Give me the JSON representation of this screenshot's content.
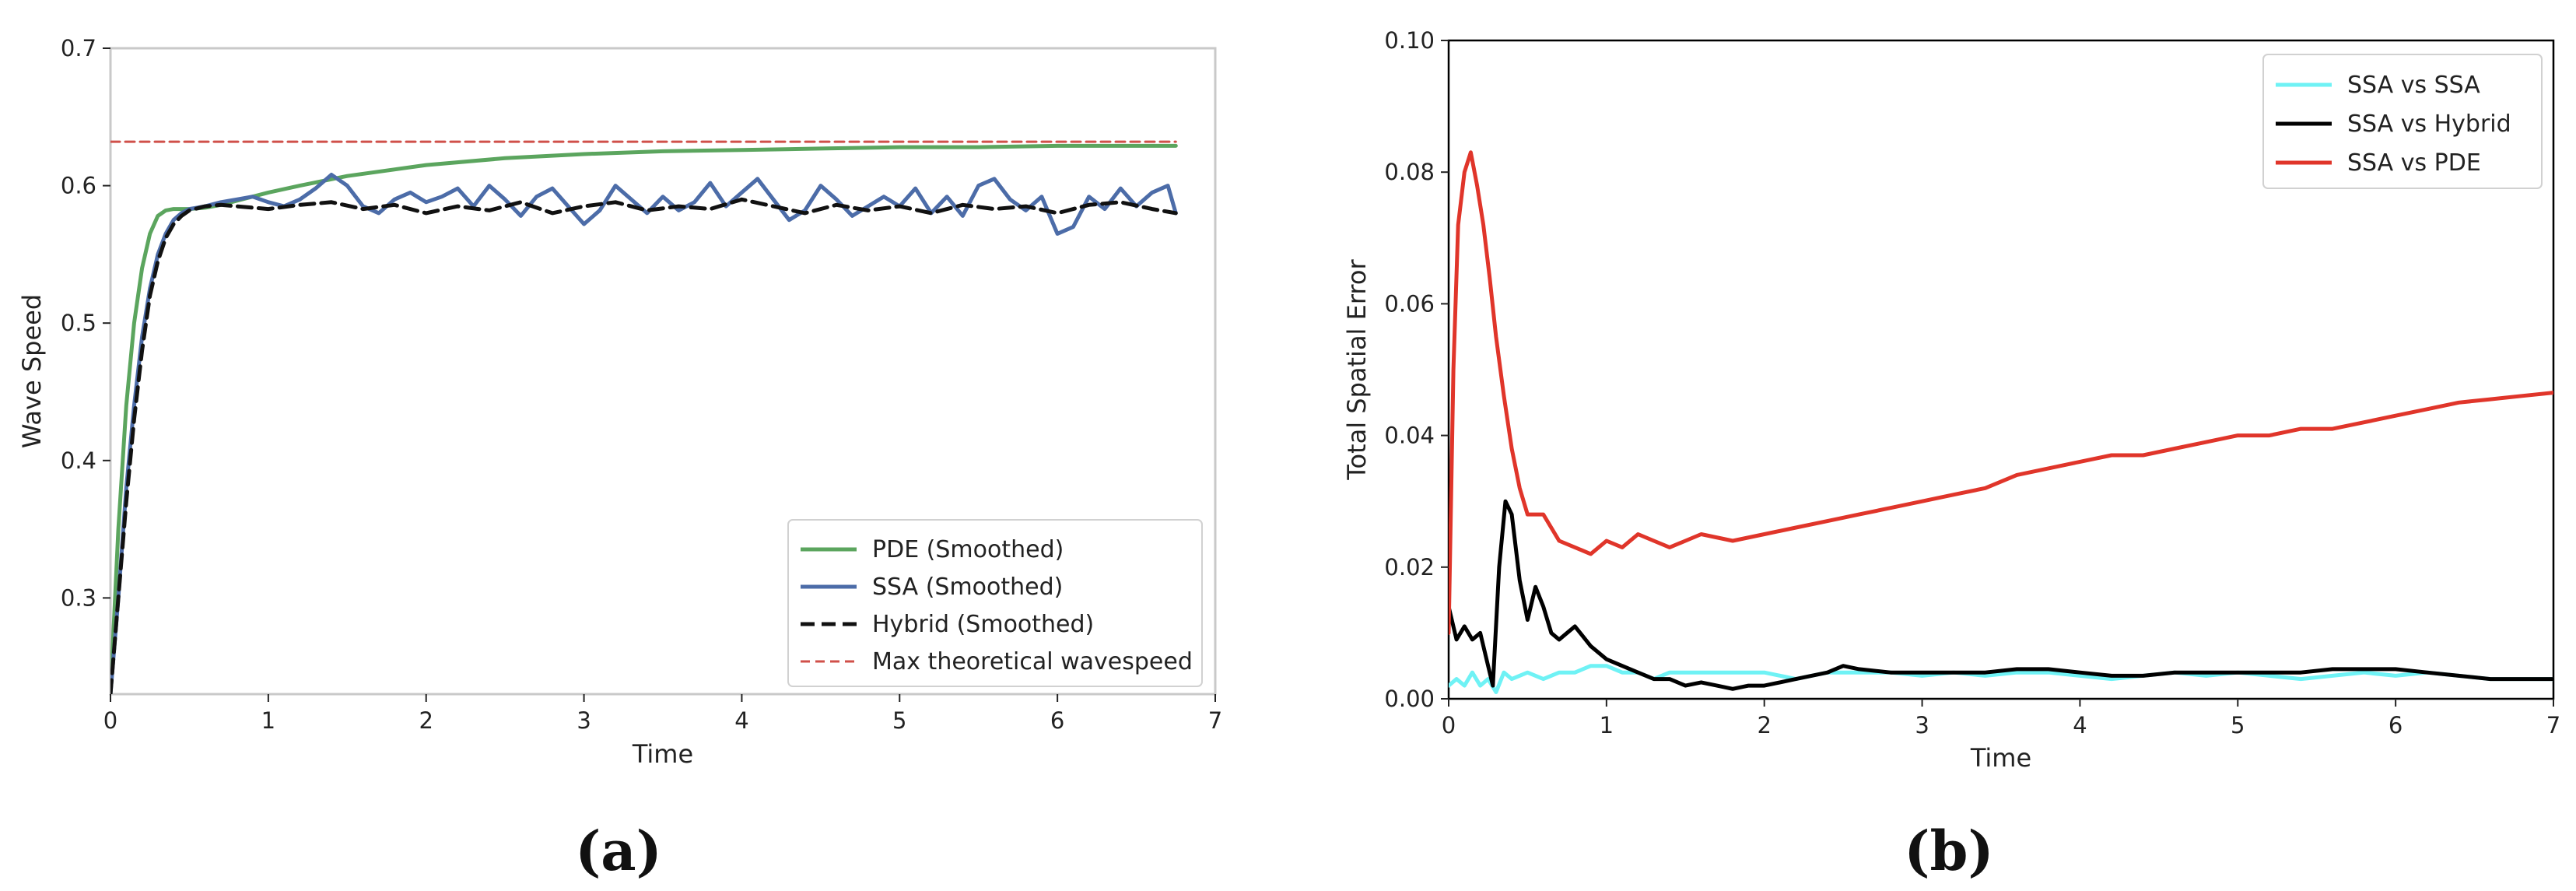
{
  "chart_data": [
    {
      "type": "line",
      "caption": "(a)",
      "xlabel": "Time",
      "ylabel": "Wave Speed",
      "xlim": [
        0,
        7
      ],
      "ylim": [
        0.23,
        0.7
      ],
      "xticks": [
        0,
        1,
        2,
        3,
        4,
        5,
        6,
        7
      ],
      "yticks": [
        0.3,
        0.4,
        0.5,
        0.6,
        0.7
      ],
      "frame": "light-gray",
      "legend_position": "lower-right",
      "series": [
        {
          "name": "PDE (Smoothed)",
          "color": "#5ba55e",
          "style": "solid",
          "x": [
            0,
            0.05,
            0.1,
            0.15,
            0.2,
            0.25,
            0.3,
            0.35,
            0.4,
            0.45,
            0.5,
            0.6,
            0.7,
            0.8,
            1.0,
            1.2,
            1.5,
            2.0,
            2.5,
            3.0,
            3.5,
            4.0,
            4.5,
            5.0,
            5.5,
            6.0,
            6.5,
            6.75
          ],
          "values": [
            0.23,
            0.35,
            0.44,
            0.5,
            0.54,
            0.565,
            0.578,
            0.582,
            0.583,
            0.583,
            0.583,
            0.584,
            0.586,
            0.589,
            0.595,
            0.6,
            0.607,
            0.615,
            0.62,
            0.623,
            0.625,
            0.626,
            0.627,
            0.628,
            0.628,
            0.629,
            0.629,
            0.629
          ]
        },
        {
          "name": "SSA (Smoothed)",
          "color": "#4c6ca8",
          "style": "solid",
          "x": [
            0,
            0.05,
            0.1,
            0.15,
            0.2,
            0.25,
            0.3,
            0.35,
            0.4,
            0.45,
            0.5,
            0.6,
            0.7,
            0.8,
            0.9,
            1.0,
            1.1,
            1.2,
            1.3,
            1.4,
            1.5,
            1.6,
            1.7,
            1.8,
            1.9,
            2.0,
            2.1,
            2.2,
            2.3,
            2.4,
            2.5,
            2.6,
            2.7,
            2.8,
            2.9,
            3.0,
            3.1,
            3.2,
            3.3,
            3.4,
            3.5,
            3.6,
            3.7,
            3.8,
            3.9,
            4.0,
            4.1,
            4.2,
            4.3,
            4.4,
            4.5,
            4.6,
            4.7,
            4.8,
            4.9,
            5.0,
            5.1,
            5.2,
            5.3,
            5.4,
            5.5,
            5.6,
            5.7,
            5.8,
            5.9,
            6.0,
            6.1,
            6.2,
            6.3,
            6.4,
            6.5,
            6.6,
            6.7,
            6.75
          ],
          "values": [
            0.23,
            0.3,
            0.38,
            0.44,
            0.49,
            0.525,
            0.55,
            0.565,
            0.575,
            0.58,
            0.583,
            0.585,
            0.588,
            0.59,
            0.592,
            0.588,
            0.585,
            0.59,
            0.598,
            0.608,
            0.6,
            0.585,
            0.58,
            0.59,
            0.595,
            0.588,
            0.592,
            0.598,
            0.585,
            0.6,
            0.59,
            0.578,
            0.592,
            0.598,
            0.585,
            0.572,
            0.582,
            0.6,
            0.59,
            0.58,
            0.592,
            0.582,
            0.588,
            0.602,
            0.585,
            0.595,
            0.605,
            0.59,
            0.575,
            0.582,
            0.6,
            0.59,
            0.578,
            0.585,
            0.592,
            0.585,
            0.598,
            0.58,
            0.592,
            0.578,
            0.6,
            0.605,
            0.59,
            0.582,
            0.592,
            0.565,
            0.57,
            0.592,
            0.583,
            0.598,
            0.585,
            0.595,
            0.6,
            0.58
          ]
        },
        {
          "name": "Hybrid (Smoothed)",
          "color": "#111111",
          "style": "dashed",
          "x": [
            0,
            0.05,
            0.1,
            0.15,
            0.2,
            0.25,
            0.3,
            0.35,
            0.4,
            0.45,
            0.5,
            0.6,
            0.7,
            0.8,
            0.9,
            1.0,
            1.2,
            1.4,
            1.6,
            1.8,
            2.0,
            2.2,
            2.4,
            2.6,
            2.8,
            3.0,
            3.2,
            3.4,
            3.6,
            3.8,
            4.0,
            4.2,
            4.4,
            4.6,
            4.8,
            5.0,
            5.2,
            5.4,
            5.6,
            5.8,
            6.0,
            6.2,
            6.4,
            6.6,
            6.75
          ],
          "values": [
            0.23,
            0.3,
            0.37,
            0.43,
            0.48,
            0.52,
            0.545,
            0.562,
            0.572,
            0.578,
            0.582,
            0.585,
            0.586,
            0.585,
            0.584,
            0.583,
            0.586,
            0.588,
            0.583,
            0.586,
            0.58,
            0.585,
            0.582,
            0.588,
            0.58,
            0.585,
            0.588,
            0.582,
            0.585,
            0.583,
            0.59,
            0.585,
            0.58,
            0.586,
            0.582,
            0.585,
            0.58,
            0.586,
            0.583,
            0.585,
            0.58,
            0.586,
            0.588,
            0.583,
            0.58
          ]
        },
        {
          "name": "Max theoretical wavespeed",
          "color": "#d0504a",
          "style": "dashed-thin",
          "x": [
            0,
            6.75
          ],
          "values": [
            0.632,
            0.632
          ]
        }
      ]
    },
    {
      "type": "line",
      "caption": "(b)",
      "xlabel": "Time",
      "ylabel": "Total Spatial Error",
      "xlim": [
        0,
        7
      ],
      "ylim": [
        0,
        0.1
      ],
      "xticks": [
        0,
        1,
        2,
        3,
        4,
        5,
        6,
        7
      ],
      "yticks": [
        0.0,
        0.02,
        0.04,
        0.06,
        0.08,
        0.1
      ],
      "ytick_labels": [
        "0.00",
        "0.02",
        "0.04",
        "0.06",
        "0.08",
        "0.10"
      ],
      "frame": "black-box",
      "legend_position": "upper-right",
      "series": [
        {
          "name": "SSA vs SSA",
          "color": "#6ff2f5",
          "style": "solid",
          "x": [
            0,
            0.05,
            0.1,
            0.15,
            0.2,
            0.25,
            0.3,
            0.35,
            0.4,
            0.5,
            0.6,
            0.7,
            0.8,
            0.9,
            1.0,
            1.1,
            1.2,
            1.3,
            1.4,
            1.5,
            1.6,
            1.8,
            2.0,
            2.2,
            2.4,
            2.6,
            2.8,
            3.0,
            3.2,
            3.4,
            3.6,
            3.8,
            4.0,
            4.2,
            4.4,
            4.6,
            4.8,
            5.0,
            5.2,
            5.4,
            5.6,
            5.8,
            6.0,
            6.2,
            6.4,
            6.6,
            6.8,
            7.0
          ],
          "values": [
            0.002,
            0.003,
            0.002,
            0.004,
            0.002,
            0.003,
            0.001,
            0.004,
            0.003,
            0.004,
            0.003,
            0.004,
            0.004,
            0.005,
            0.005,
            0.004,
            0.004,
            0.003,
            0.004,
            0.004,
            0.004,
            0.004,
            0.004,
            0.003,
            0.004,
            0.004,
            0.004,
            0.0035,
            0.004,
            0.0035,
            0.004,
            0.004,
            0.0035,
            0.003,
            0.0035,
            0.004,
            0.0035,
            0.004,
            0.0035,
            0.003,
            0.0035,
            0.004,
            0.0035,
            0.004,
            0.0035,
            0.003,
            0.003,
            0.003
          ]
        },
        {
          "name": "SSA vs Hybrid",
          "color": "#000000",
          "style": "solid",
          "x": [
            0,
            0.05,
            0.1,
            0.15,
            0.2,
            0.25,
            0.28,
            0.32,
            0.36,
            0.4,
            0.45,
            0.5,
            0.55,
            0.6,
            0.65,
            0.7,
            0.75,
            0.8,
            0.9,
            1.0,
            1.1,
            1.2,
            1.3,
            1.4,
            1.5,
            1.6,
            1.7,
            1.8,
            1.9,
            2.0,
            2.2,
            2.4,
            2.5,
            2.6,
            2.8,
            3.0,
            3.2,
            3.4,
            3.6,
            3.8,
            4.0,
            4.2,
            4.4,
            4.6,
            4.8,
            5.0,
            5.2,
            5.4,
            5.6,
            5.8,
            6.0,
            6.2,
            6.4,
            6.6,
            6.8,
            7.0
          ],
          "values": [
            0.014,
            0.009,
            0.011,
            0.009,
            0.01,
            0.005,
            0.002,
            0.02,
            0.03,
            0.028,
            0.018,
            0.012,
            0.017,
            0.014,
            0.01,
            0.009,
            0.01,
            0.011,
            0.008,
            0.006,
            0.005,
            0.004,
            0.003,
            0.003,
            0.002,
            0.0025,
            0.002,
            0.0015,
            0.002,
            0.002,
            0.003,
            0.004,
            0.005,
            0.0045,
            0.004,
            0.004,
            0.004,
            0.004,
            0.0045,
            0.0045,
            0.004,
            0.0035,
            0.0035,
            0.004,
            0.004,
            0.004,
            0.004,
            0.004,
            0.0045,
            0.0045,
            0.0045,
            0.004,
            0.0035,
            0.003,
            0.003,
            0.003
          ]
        },
        {
          "name": "SSA vs PDE",
          "color": "#e0352a",
          "style": "solid",
          "x": [
            0,
            0.03,
            0.06,
            0.1,
            0.14,
            0.18,
            0.22,
            0.26,
            0.3,
            0.35,
            0.4,
            0.45,
            0.5,
            0.55,
            0.6,
            0.7,
            0.8,
            0.9,
            1.0,
            1.1,
            1.2,
            1.3,
            1.4,
            1.5,
            1.6,
            1.8,
            2.0,
            2.2,
            2.4,
            2.6,
            2.8,
            3.0,
            3.2,
            3.4,
            3.6,
            3.8,
            4.0,
            4.2,
            4.4,
            4.6,
            4.8,
            5.0,
            5.2,
            5.4,
            5.6,
            5.8,
            6.0,
            6.2,
            6.4,
            6.6,
            6.8,
            7.0
          ],
          "values": [
            0.01,
            0.05,
            0.072,
            0.08,
            0.083,
            0.078,
            0.072,
            0.064,
            0.055,
            0.046,
            0.038,
            0.032,
            0.028,
            0.028,
            0.028,
            0.024,
            0.023,
            0.022,
            0.024,
            0.023,
            0.025,
            0.024,
            0.023,
            0.024,
            0.025,
            0.024,
            0.025,
            0.026,
            0.027,
            0.028,
            0.029,
            0.03,
            0.031,
            0.032,
            0.034,
            0.035,
            0.036,
            0.037,
            0.037,
            0.038,
            0.039,
            0.04,
            0.04,
            0.041,
            0.041,
            0.042,
            0.043,
            0.044,
            0.045,
            0.0455,
            0.046,
            0.0465
          ]
        }
      ]
    }
  ]
}
